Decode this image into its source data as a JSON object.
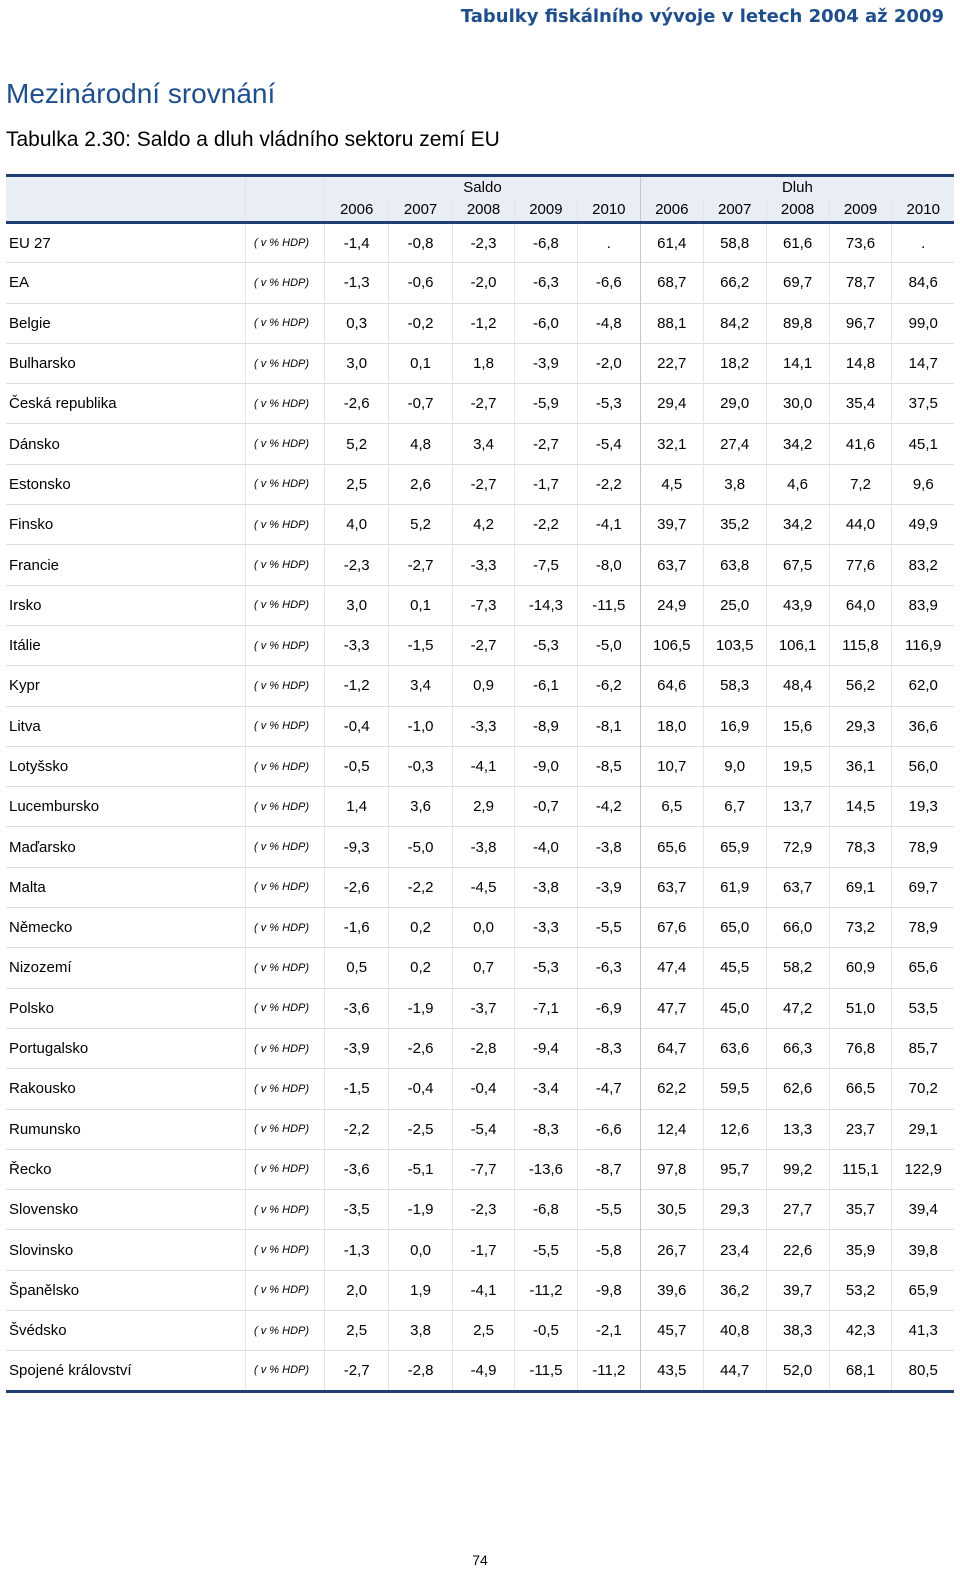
{
  "doc_header": "Tabulky fiskálního vývoje v letech 2004 až 2009",
  "section_title": "Mezinárodní srovnání",
  "table_title": "Tabulka 2.30: Saldo a dluh vládního sektoru zemí EU",
  "groups": {
    "saldo": "Saldo",
    "dluh": "Dluh"
  },
  "years": [
    "2006",
    "2007",
    "2008",
    "2009",
    "2010",
    "2006",
    "2007",
    "2008",
    "2009",
    "2010"
  ],
  "unit": "( v % HDP)",
  "rows": [
    {
      "country": "EU 27",
      "values": [
        "-1,4",
        "-0,8",
        "-2,3",
        "-6,8",
        ".",
        "61,4",
        "58,8",
        "61,6",
        "73,6",
        "."
      ]
    },
    {
      "country": "EA",
      "values": [
        "-1,3",
        "-0,6",
        "-2,0",
        "-6,3",
        "-6,6",
        "68,7",
        "66,2",
        "69,7",
        "78,7",
        "84,6"
      ]
    },
    {
      "country": "Belgie",
      "values": [
        "0,3",
        "-0,2",
        "-1,2",
        "-6,0",
        "-4,8",
        "88,1",
        "84,2",
        "89,8",
        "96,7",
        "99,0"
      ]
    },
    {
      "country": "Bulharsko",
      "values": [
        "3,0",
        "0,1",
        "1,8",
        "-3,9",
        "-2,0",
        "22,7",
        "18,2",
        "14,1",
        "14,8",
        "14,7"
      ]
    },
    {
      "country": "Česká republika",
      "values": [
        "-2,6",
        "-0,7",
        "-2,7",
        "-5,9",
        "-5,3",
        "29,4",
        "29,0",
        "30,0",
        "35,4",
        "37,5"
      ]
    },
    {
      "country": "Dánsko",
      "values": [
        "5,2",
        "4,8",
        "3,4",
        "-2,7",
        "-5,4",
        "32,1",
        "27,4",
        "34,2",
        "41,6",
        "45,1"
      ]
    },
    {
      "country": "Estonsko",
      "values": [
        "2,5",
        "2,6",
        "-2,7",
        "-1,7",
        "-2,2",
        "4,5",
        "3,8",
        "4,6",
        "7,2",
        "9,6"
      ]
    },
    {
      "country": "Finsko",
      "values": [
        "4,0",
        "5,2",
        "4,2",
        "-2,2",
        "-4,1",
        "39,7",
        "35,2",
        "34,2",
        "44,0",
        "49,9"
      ]
    },
    {
      "country": "Francie",
      "values": [
        "-2,3",
        "-2,7",
        "-3,3",
        "-7,5",
        "-8,0",
        "63,7",
        "63,8",
        "67,5",
        "77,6",
        "83,2"
      ]
    },
    {
      "country": "Irsko",
      "values": [
        "3,0",
        "0,1",
        "-7,3",
        "-14,3",
        "-11,5",
        "24,9",
        "25,0",
        "43,9",
        "64,0",
        "83,9"
      ]
    },
    {
      "country": "Itálie",
      "values": [
        "-3,3",
        "-1,5",
        "-2,7",
        "-5,3",
        "-5,0",
        "106,5",
        "103,5",
        "106,1",
        "115,8",
        "116,9"
      ]
    },
    {
      "country": "Kypr",
      "values": [
        "-1,2",
        "3,4",
        "0,9",
        "-6,1",
        "-6,2",
        "64,6",
        "58,3",
        "48,4",
        "56,2",
        "62,0"
      ]
    },
    {
      "country": "Litva",
      "values": [
        "-0,4",
        "-1,0",
        "-3,3",
        "-8,9",
        "-8,1",
        "18,0",
        "16,9",
        "15,6",
        "29,3",
        "36,6"
      ]
    },
    {
      "country": "Lotyšsko",
      "values": [
        "-0,5",
        "-0,3",
        "-4,1",
        "-9,0",
        "-8,5",
        "10,7",
        "9,0",
        "19,5",
        "36,1",
        "56,0"
      ]
    },
    {
      "country": "Lucembursko",
      "values": [
        "1,4",
        "3,6",
        "2,9",
        "-0,7",
        "-4,2",
        "6,5",
        "6,7",
        "13,7",
        "14,5",
        "19,3"
      ]
    },
    {
      "country": "Maďarsko",
      "values": [
        "-9,3",
        "-5,0",
        "-3,8",
        "-4,0",
        "-3,8",
        "65,6",
        "65,9",
        "72,9",
        "78,3",
        "78,9"
      ]
    },
    {
      "country": "Malta",
      "values": [
        "-2,6",
        "-2,2",
        "-4,5",
        "-3,8",
        "-3,9",
        "63,7",
        "61,9",
        "63,7",
        "69,1",
        "69,7"
      ]
    },
    {
      "country": "Německo",
      "values": [
        "-1,6",
        "0,2",
        "0,0",
        "-3,3",
        "-5,5",
        "67,6",
        "65,0",
        "66,0",
        "73,2",
        "78,9"
      ]
    },
    {
      "country": "Nizozemí",
      "values": [
        "0,5",
        "0,2",
        "0,7",
        "-5,3",
        "-6,3",
        "47,4",
        "45,5",
        "58,2",
        "60,9",
        "65,6"
      ]
    },
    {
      "country": "Polsko",
      "values": [
        "-3,6",
        "-1,9",
        "-3,7",
        "-7,1",
        "-6,9",
        "47,7",
        "45,0",
        "47,2",
        "51,0",
        "53,5"
      ]
    },
    {
      "country": "Portugalsko",
      "values": [
        "-3,9",
        "-2,6",
        "-2,8",
        "-9,4",
        "-8,3",
        "64,7",
        "63,6",
        "66,3",
        "76,8",
        "85,7"
      ]
    },
    {
      "country": "Rakousko",
      "values": [
        "-1,5",
        "-0,4",
        "-0,4",
        "-3,4",
        "-4,7",
        "62,2",
        "59,5",
        "62,6",
        "66,5",
        "70,2"
      ]
    },
    {
      "country": "Rumunsko",
      "values": [
        "-2,2",
        "-2,5",
        "-5,4",
        "-8,3",
        "-6,6",
        "12,4",
        "12,6",
        "13,3",
        "23,7",
        "29,1"
      ]
    },
    {
      "country": "Řecko",
      "values": [
        "-3,6",
        "-5,1",
        "-7,7",
        "-13,6",
        "-8,7",
        "97,8",
        "95,7",
        "99,2",
        "115,1",
        "122,9"
      ]
    },
    {
      "country": "Slovensko",
      "values": [
        "-3,5",
        "-1,9",
        "-2,3",
        "-6,8",
        "-5,5",
        "30,5",
        "29,3",
        "27,7",
        "35,7",
        "39,4"
      ]
    },
    {
      "country": "Slovinsko",
      "values": [
        "-1,3",
        "0,0",
        "-1,7",
        "-5,5",
        "-5,8",
        "26,7",
        "23,4",
        "22,6",
        "35,9",
        "39,8"
      ]
    },
    {
      "country": "Španělsko",
      "values": [
        "2,0",
        "1,9",
        "-4,1",
        "-11,2",
        "-9,8",
        "39,6",
        "36,2",
        "39,7",
        "53,2",
        "65,9"
      ]
    },
    {
      "country": "Švédsko",
      "values": [
        "2,5",
        "3,8",
        "2,5",
        "-0,5",
        "-2,1",
        "45,7",
        "40,8",
        "38,3",
        "42,3",
        "41,3"
      ]
    },
    {
      "country": "Spojené království",
      "values": [
        "-2,7",
        "-2,8",
        "-4,9",
        "-11,5",
        "-11,2",
        "43,5",
        "44,7",
        "52,0",
        "68,1",
        "80,5"
      ]
    }
  ],
  "page_number": "74"
}
